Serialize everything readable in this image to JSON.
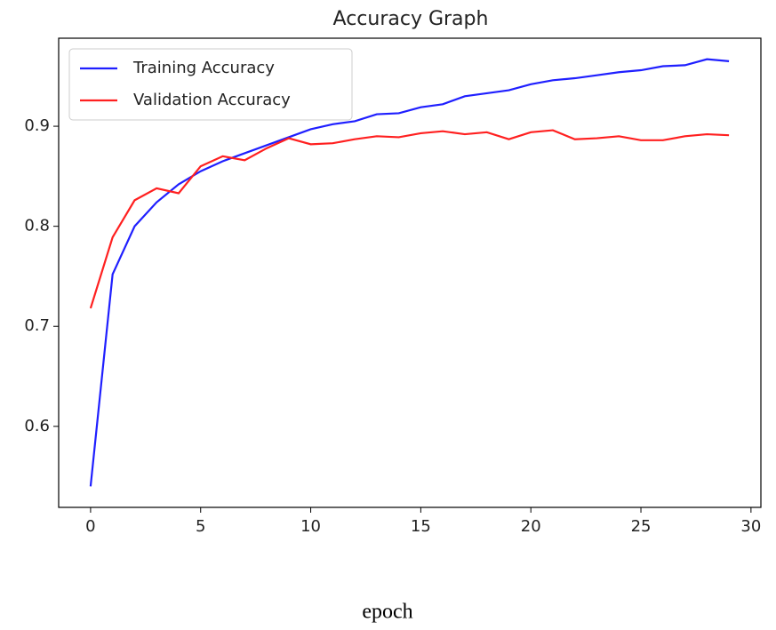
{
  "chart_data": {
    "type": "line",
    "title": "Accuracy Graph",
    "x_label": "epoch",
    "x": [
      0,
      1,
      2,
      3,
      4,
      5,
      6,
      7,
      8,
      9,
      10,
      11,
      12,
      13,
      14,
      15,
      16,
      17,
      18,
      19,
      20,
      21,
      22,
      23,
      24,
      25,
      26,
      27,
      28,
      29
    ],
    "series": [
      {
        "name": "Training Accuracy",
        "color": "#1f1fff",
        "values": [
          0.54,
          0.752,
          0.8,
          0.824,
          0.842,
          0.855,
          0.865,
          0.873,
          0.881,
          0.889,
          0.897,
          0.902,
          0.905,
          0.912,
          0.913,
          0.919,
          0.922,
          0.93,
          0.933,
          0.936,
          0.942,
          0.946,
          0.948,
          0.951,
          0.954,
          0.956,
          0.96,
          0.961,
          0.967,
          0.965
        ]
      },
      {
        "name": "Validation Accuracy",
        "color": "#ff2020",
        "values": [
          0.718,
          0.789,
          0.826,
          0.838,
          0.833,
          0.86,
          0.87,
          0.866,
          0.878,
          0.888,
          0.882,
          0.883,
          0.887,
          0.89,
          0.889,
          0.893,
          0.895,
          0.892,
          0.894,
          0.887,
          0.894,
          0.896,
          0.887,
          0.888,
          0.89,
          0.886,
          0.886,
          0.89,
          0.892,
          0.891
        ]
      }
    ],
    "xlim": [
      -1.45,
      30.45
    ],
    "ylim": [
      0.519,
      0.988
    ],
    "xticks": [
      0,
      5,
      10,
      15,
      20,
      25,
      30
    ],
    "yticks": [
      0.6,
      0.7,
      0.8,
      0.9
    ],
    "grid": false,
    "legend": "upper left"
  }
}
